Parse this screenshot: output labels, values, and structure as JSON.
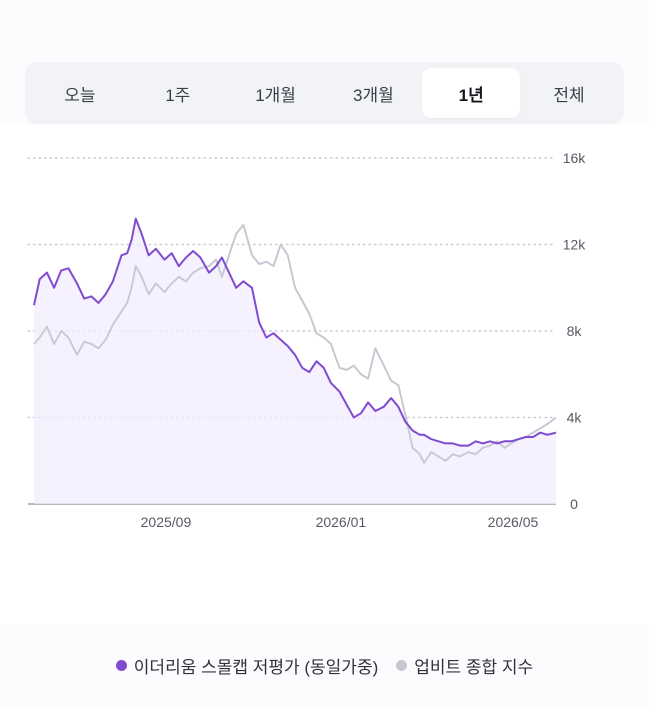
{
  "period_tabs": {
    "items": [
      "오늘",
      "1주",
      "1개월",
      "3개월",
      "1년",
      "전체"
    ],
    "selected": "1년"
  },
  "colors": {
    "primary_series": "#7f4bd1",
    "primary_fill": "#f3ecfd",
    "secondary_series": "#c6c8d2",
    "grid": "#c9ccd4",
    "axis": "#555a64"
  },
  "chart_data": {
    "type": "line",
    "x_ticks": [
      "2025/09",
      "2026/01",
      "2026/05"
    ],
    "x_range": [
      "2025-06-01",
      "2026-05-31"
    ],
    "y_ticks": [
      "0",
      "4k",
      "8k",
      "12k",
      "16k"
    ],
    "ylim": [
      0,
      16000
    ],
    "grid": true,
    "legend_position": "bottom",
    "series": [
      {
        "name": "이더리움 스몰캡 저평가 (동일가중)",
        "color": "#7f4bd1",
        "filled": true,
        "x": [
          "2025-06-01",
          "2025-06-05",
          "2025-06-10",
          "2025-06-15",
          "2025-06-20",
          "2025-06-25",
          "2025-07-01",
          "2025-07-06",
          "2025-07-11",
          "2025-07-16",
          "2025-07-21",
          "2025-07-26",
          "2025-08-01",
          "2025-08-05",
          "2025-08-08",
          "2025-08-11",
          "2025-08-15",
          "2025-08-20",
          "2025-08-25",
          "2025-08-31",
          "2025-09-05",
          "2025-09-10",
          "2025-09-15",
          "2025-09-20",
          "2025-09-25",
          "2025-10-01",
          "2025-10-06",
          "2025-10-10",
          "2025-10-15",
          "2025-10-20",
          "2025-10-25",
          "2025-10-31",
          "2025-11-05",
          "2025-11-10",
          "2025-11-15",
          "2025-11-20",
          "2025-11-25",
          "2025-11-30",
          "2025-12-05",
          "2025-12-10",
          "2025-12-15",
          "2025-12-20",
          "2025-12-25",
          "2025-12-31",
          "2026-01-05",
          "2026-01-10",
          "2026-01-15",
          "2026-01-20",
          "2026-01-25",
          "2026-01-31",
          "2026-02-05",
          "2026-02-10",
          "2026-02-15",
          "2026-02-20",
          "2026-02-25",
          "2026-02-28",
          "2026-03-05",
          "2026-03-10",
          "2026-03-15",
          "2026-03-20",
          "2026-03-25",
          "2026-03-31",
          "2026-04-05",
          "2026-04-10",
          "2026-04-15",
          "2026-04-20",
          "2026-04-25",
          "2026-04-30",
          "2026-05-05",
          "2026-05-10",
          "2026-05-15",
          "2026-05-20",
          "2026-05-25",
          "2026-05-31"
        ],
        "values": [
          9200,
          10400,
          10700,
          10000,
          10800,
          10900,
          10200,
          9500,
          9600,
          9300,
          9700,
          10300,
          11500,
          11600,
          12200,
          13200,
          12500,
          11500,
          11800,
          11300,
          11600,
          11000,
          11400,
          11700,
          11400,
          10700,
          11000,
          11400,
          10700,
          10000,
          10300,
          10000,
          8400,
          7700,
          7900,
          7600,
          7300,
          6900,
          6300,
          6100,
          6600,
          6300,
          5600,
          5200,
          4600,
          4000,
          4200,
          4700,
          4300,
          4500,
          4900,
          4500,
          3800,
          3400,
          3200,
          3200,
          3000,
          2900,
          2800,
          2800,
          2700,
          2700,
          2900,
          2800,
          2900,
          2800,
          2900,
          2900,
          3000,
          3100,
          3100,
          3300,
          3200,
          3300
        ]
      },
      {
        "name": "업비트 종합 지수",
        "color": "#c6c8d2",
        "filled": false,
        "x": [
          "2025-06-01",
          "2025-06-05",
          "2025-06-10",
          "2025-06-15",
          "2025-06-20",
          "2025-06-25",
          "2025-07-01",
          "2025-07-06",
          "2025-07-11",
          "2025-07-16",
          "2025-07-21",
          "2025-07-26",
          "2025-08-01",
          "2025-08-05",
          "2025-08-08",
          "2025-08-11",
          "2025-08-15",
          "2025-08-20",
          "2025-08-25",
          "2025-08-31",
          "2025-09-05",
          "2025-09-10",
          "2025-09-15",
          "2025-09-20",
          "2025-09-25",
          "2025-10-01",
          "2025-10-06",
          "2025-10-10",
          "2025-10-15",
          "2025-10-20",
          "2025-10-25",
          "2025-10-31",
          "2025-11-05",
          "2025-11-10",
          "2025-11-15",
          "2025-11-20",
          "2025-11-25",
          "2025-11-30",
          "2025-12-05",
          "2025-12-10",
          "2025-12-15",
          "2025-12-20",
          "2025-12-25",
          "2025-12-31",
          "2026-01-05",
          "2026-01-10",
          "2026-01-15",
          "2026-01-20",
          "2026-01-25",
          "2026-01-31",
          "2026-02-05",
          "2026-02-10",
          "2026-02-15",
          "2026-02-20",
          "2026-02-25",
          "2026-02-28",
          "2026-03-05",
          "2026-03-10",
          "2026-03-15",
          "2026-03-20",
          "2026-03-25",
          "2026-03-31",
          "2026-04-05",
          "2026-04-10",
          "2026-04-15",
          "2026-04-20",
          "2026-04-25",
          "2026-04-30",
          "2026-05-05",
          "2026-05-10",
          "2026-05-15",
          "2026-05-20",
          "2026-05-25",
          "2026-05-31"
        ],
        "values": [
          7400,
          7700,
          8200,
          7400,
          8000,
          7700,
          6900,
          7500,
          7400,
          7200,
          7600,
          8300,
          8900,
          9300,
          10000,
          11000,
          10500,
          9700,
          10200,
          9800,
          10200,
          10500,
          10300,
          10700,
          10900,
          11000,
          11300,
          10500,
          11500,
          12500,
          12900,
          11500,
          11100,
          11200,
          11000,
          12000,
          11500,
          10000,
          9400,
          8800,
          7900,
          7700,
          7400,
          6300,
          6200,
          6400,
          6000,
          5800,
          7200,
          6400,
          5700,
          5500,
          4100,
          2600,
          2300,
          1900,
          2400,
          2200,
          2000,
          2300,
          2200,
          2400,
          2300,
          2600,
          2700,
          2900,
          2600,
          2800,
          3000,
          3100,
          3300,
          3500,
          3700,
          4000
        ]
      }
    ]
  }
}
